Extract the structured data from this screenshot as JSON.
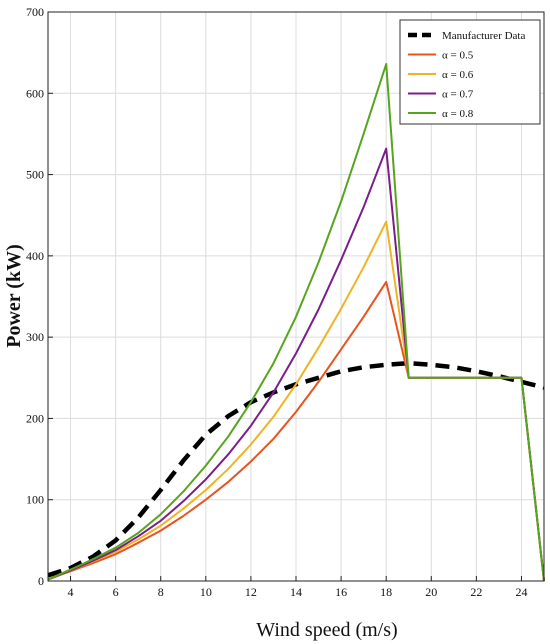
{
  "chart_data": {
    "type": "line",
    "title": "",
    "xlabel": "Wind speed (m/s)",
    "ylabel": "Power (kW)",
    "xlim": [
      3,
      25
    ],
    "ylim": [
      0,
      700
    ],
    "xticks": [
      4,
      6,
      8,
      10,
      12,
      14,
      16,
      18,
      20,
      22,
      24
    ],
    "yticks": [
      0,
      100,
      200,
      300,
      400,
      500,
      600,
      700
    ],
    "grid": true,
    "legend_position": "top-right",
    "series": [
      {
        "name": "Manufacturer Data",
        "color": "#000000",
        "style": "dashed",
        "x": [
          3,
          4,
          5,
          6,
          7,
          8,
          9,
          10,
          11,
          12,
          13,
          14,
          15,
          16,
          17,
          18,
          19,
          20,
          21,
          22,
          23,
          24,
          25
        ],
        "y": [
          7,
          16,
          30,
          50,
          78,
          112,
          148,
          180,
          203,
          220,
          232,
          242,
          250,
          258,
          263,
          266,
          268,
          266,
          263,
          258,
          252,
          245,
          238
        ]
      },
      {
        "name": "α = 0.5",
        "color": "#e8541e",
        "style": "solid",
        "x": [
          3,
          4,
          5,
          6,
          7,
          8,
          9,
          10,
          11,
          12,
          13,
          14,
          15,
          16,
          17,
          18,
          19,
          20,
          21,
          22,
          23,
          24,
          25
        ],
        "y": [
          2,
          12,
          22,
          33,
          47,
          62,
          80,
          100,
          122,
          147,
          175,
          208,
          245,
          285,
          325,
          368,
          250,
          250,
          250,
          250,
          250,
          250,
          0
        ]
      },
      {
        "name": "α = 0.6",
        "color": "#f0b323",
        "style": "solid",
        "x": [
          3,
          4,
          5,
          6,
          7,
          8,
          9,
          10,
          11,
          12,
          13,
          14,
          15,
          16,
          17,
          18,
          19,
          20,
          21,
          22,
          23,
          24,
          25
        ],
        "y": [
          2,
          13,
          24,
          36,
          51,
          68,
          89,
          112,
          138,
          168,
          202,
          242,
          287,
          335,
          386,
          442,
          250,
          250,
          250,
          250,
          250,
          250,
          0
        ]
      },
      {
        "name": "α = 0.7",
        "color": "#7b1e8c",
        "style": "solid",
        "x": [
          3,
          4,
          5,
          6,
          7,
          8,
          9,
          10,
          11,
          12,
          13,
          14,
          15,
          16,
          17,
          18,
          19,
          20,
          21,
          22,
          23,
          24,
          25
        ],
        "y": [
          2,
          13,
          25,
          38,
          55,
          74,
          98,
          125,
          156,
          191,
          232,
          280,
          334,
          395,
          460,
          532,
          250,
          250,
          250,
          250,
          250,
          250,
          0
        ]
      },
      {
        "name": "α = 0.8",
        "color": "#56a51f",
        "style": "solid",
        "x": [
          3,
          4,
          5,
          6,
          7,
          8,
          9,
          10,
          11,
          12,
          13,
          14,
          15,
          16,
          17,
          18,
          19,
          20,
          21,
          22,
          23,
          24,
          25
        ],
        "y": [
          2,
          14,
          27,
          41,
          59,
          82,
          110,
          142,
          178,
          220,
          268,
          325,
          392,
          467,
          550,
          636,
          250,
          250,
          250,
          250,
          250,
          250,
          0
        ]
      }
    ]
  }
}
